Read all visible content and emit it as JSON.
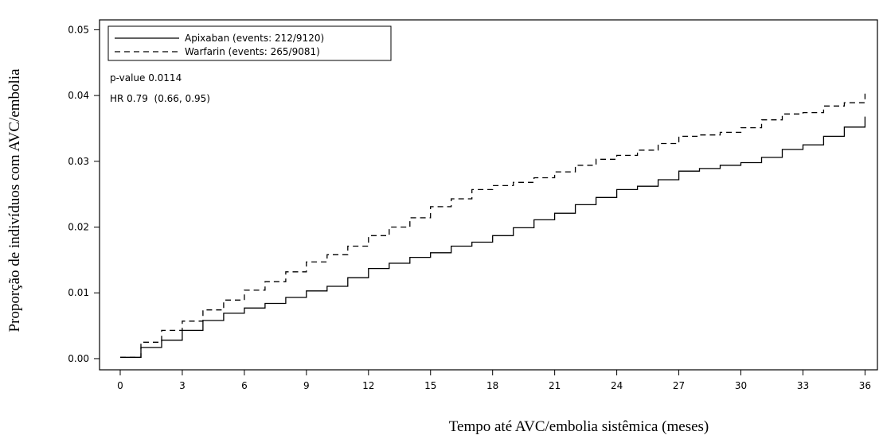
{
  "chart_data": {
    "type": "line",
    "step": true,
    "xlabel": "Tempo até AVC/embolia sistêmica (meses)",
    "ylabel": "Proporção de indivíduos com AVC/embolia",
    "xlim": [
      -1,
      36.6
    ],
    "ylim": [
      -0.0017,
      0.0515
    ],
    "xticks": [
      0,
      3,
      6,
      9,
      12,
      15,
      18,
      21,
      24,
      27,
      30,
      33,
      36
    ],
    "yticks": [
      "0.00",
      "0.01",
      "0.02",
      "0.03",
      "0.04",
      "0.05"
    ],
    "legend_position": "top-left",
    "annotations": [
      "p-value 0.0114",
      "HR 0.79  (0.66, 0.95)"
    ],
    "series": [
      {
        "name": "Apixaban (events: 212/9120)",
        "style": "solid",
        "x": [
          0,
          1,
          2,
          3,
          4,
          5,
          6,
          7,
          8,
          9,
          10,
          11,
          12,
          13,
          14,
          15,
          16,
          17,
          18,
          19,
          20,
          21,
          22,
          23,
          24,
          25,
          26,
          27,
          28,
          29,
          30,
          31,
          32,
          33,
          34,
          35,
          36
        ],
        "y": [
          0.0002,
          0.0017,
          0.0028,
          0.0043,
          0.0058,
          0.0069,
          0.0077,
          0.0084,
          0.0093,
          0.0103,
          0.011,
          0.0123,
          0.0137,
          0.0145,
          0.0154,
          0.0161,
          0.0171,
          0.0177,
          0.0187,
          0.0199,
          0.0211,
          0.0221,
          0.0234,
          0.0245,
          0.0257,
          0.0262,
          0.0272,
          0.0285,
          0.0289,
          0.0294,
          0.0298,
          0.0306,
          0.0318,
          0.0325,
          0.0338,
          0.0352,
          0.0368
        ]
      },
      {
        "name": "Warfarin (events: 265/9081)",
        "style": "dashed",
        "x": [
          0,
          1,
          2,
          3,
          4,
          5,
          6,
          7,
          8,
          9,
          10,
          11,
          12,
          13,
          14,
          15,
          16,
          17,
          18,
          19,
          20,
          21,
          22,
          23,
          24,
          25,
          26,
          27,
          28,
          29,
          30,
          31,
          32,
          33,
          34,
          35,
          36
        ],
        "y": [
          0.0002,
          0.0025,
          0.0043,
          0.0057,
          0.0074,
          0.0089,
          0.0104,
          0.0117,
          0.0132,
          0.0147,
          0.0158,
          0.0171,
          0.0187,
          0.02,
          0.0214,
          0.0231,
          0.0243,
          0.0257,
          0.0263,
          0.0268,
          0.0275,
          0.0284,
          0.0294,
          0.0303,
          0.0309,
          0.0317,
          0.0327,
          0.0338,
          0.034,
          0.0344,
          0.0351,
          0.0363,
          0.0372,
          0.0374,
          0.0384,
          0.0389,
          0.0403
        ]
      }
    ]
  }
}
